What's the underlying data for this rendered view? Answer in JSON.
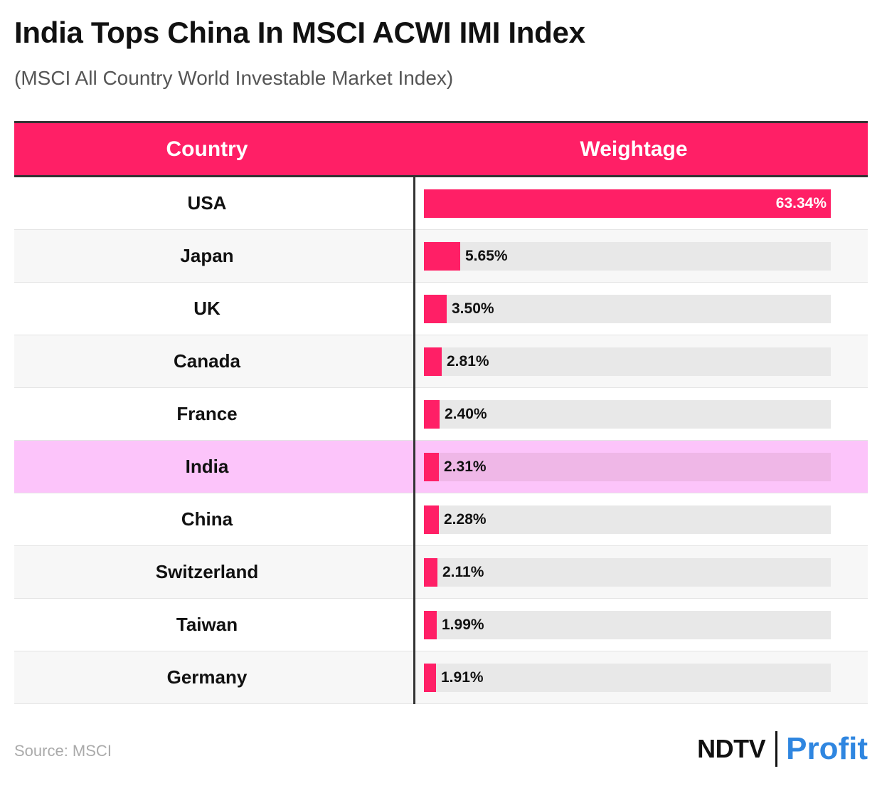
{
  "title": "India Tops China In MSCI ACWI IMI Index",
  "subtitle": "(MSCI All Country World Investable Market Index)",
  "source": "Source: MSCI",
  "logo": {
    "left": "NDTV",
    "right": "Profit"
  },
  "colors": {
    "accent": "#ff1f66",
    "highlight": "#fcc4fa",
    "track": "#e8e8e8"
  },
  "chart_data": {
    "type": "bar",
    "orientation": "horizontal",
    "title": "India Tops China In MSCI ACWI IMI Index",
    "subtitle": "(MSCI All Country World Investable Market Index)",
    "columns": [
      "Country",
      "Weightage"
    ],
    "categories": [
      "USA",
      "Japan",
      "UK",
      "Canada",
      "France",
      "India",
      "China",
      "Switzerland",
      "Taiwan",
      "Germany"
    ],
    "values": [
      63.34,
      5.65,
      3.5,
      2.81,
      2.4,
      2.31,
      2.28,
      2.11,
      1.99,
      1.91
    ],
    "labels": [
      "63.34%",
      "5.65%",
      "3.50%",
      "2.81%",
      "2.40%",
      "2.31%",
      "2.28%",
      "2.11%",
      "1.99%",
      "1.91%"
    ],
    "highlighted": "India",
    "xlim": [
      0,
      63.34
    ]
  }
}
